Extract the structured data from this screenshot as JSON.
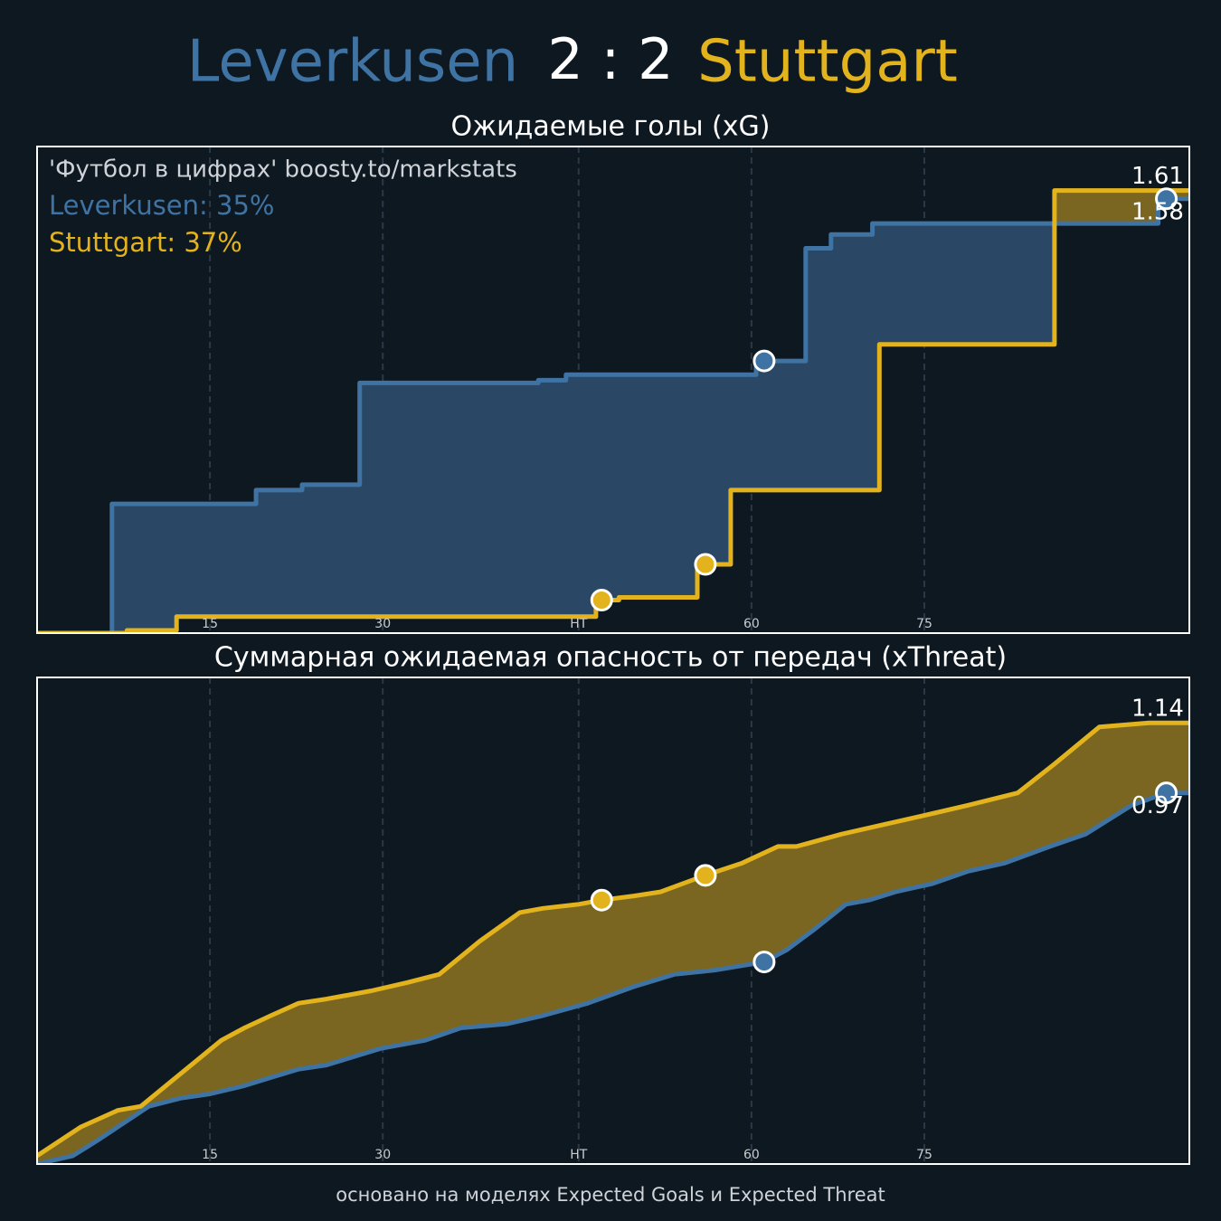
{
  "header": {
    "home": "Leverkusen",
    "score": "2 : 2",
    "away": "Stuttgart"
  },
  "footer": "основано на моделях Expected Goals и Expected Threat",
  "chart_data": [
    {
      "type": "step",
      "title": "Ожидаемые голы (xG)",
      "annotations": [
        "'Футбол в цифрах' boosty.to/markstats",
        "Leverkusen: 35%",
        "Stuttgart: 37%"
      ],
      "xlim": [
        0,
        100
      ],
      "ylim": [
        0,
        1.77
      ],
      "xticks": [
        15,
        30,
        {
          "value": 47,
          "label": "HT"
        },
        {
          "value": 62,
          "label": "60"
        },
        {
          "value": 77,
          "label": "75"
        }
      ],
      "grid": true,
      "series": [
        {
          "name": "Leverkusen",
          "color": "#3f73a3",
          "fill": "#2a4865",
          "x": [
            0,
            6.5,
            19,
            23,
            28,
            43.5,
            45.9,
            62.4,
            66.7,
            68.9,
            72.5,
            97.3,
            100
          ],
          "values": [
            0,
            0.47,
            0.52,
            0.54,
            0.91,
            0.92,
            0.94,
            0.99,
            1.4,
            1.45,
            1.49,
            1.58,
            1.58
          ],
          "goals": [
            63.1,
            98.0
          ]
        },
        {
          "name": "Stuttgart",
          "color": "#e2b31d",
          "fill": "#7a6620",
          "x": [
            0,
            7.8,
            12.1,
            48.5,
            50.5,
            57.3,
            60.2,
            73.1,
            88.3,
            100
          ],
          "values": [
            0,
            0.01,
            0.06,
            0.12,
            0.13,
            0.25,
            0.52,
            1.05,
            1.61,
            1.61
          ],
          "goals": [
            49.0,
            58.0
          ]
        }
      ]
    },
    {
      "type": "line",
      "title": "Суммарная ожидаемая опасность от передач (xThreat)",
      "xlim": [
        0,
        100
      ],
      "ylim": [
        0.07,
        1.25
      ],
      "xticks": [
        15,
        30,
        {
          "value": 47,
          "label": "HT"
        },
        {
          "value": 62,
          "label": "60"
        },
        {
          "value": 77,
          "label": "75"
        }
      ],
      "grid": true,
      "series": [
        {
          "name": "Leverkusen",
          "color": "#3f73a3",
          "fill": "#2a4865",
          "x": [
            0,
            3.1,
            5.4,
            9.7,
            12.5,
            15.0,
            18.0,
            20.3,
            22.7,
            25.1,
            29.8,
            33.7,
            36.8,
            40.8,
            43.9,
            47.8,
            51.8,
            55.3,
            58.8,
            63.1,
            65.1,
            67.5,
            70.2,
            72.2,
            74.5,
            77.7,
            80.8,
            84.0,
            87.9,
            91.0,
            95.0,
            98.0,
            100
          ],
          "values": [
            0.07,
            0.09,
            0.13,
            0.21,
            0.23,
            0.24,
            0.26,
            0.28,
            0.3,
            0.31,
            0.35,
            0.37,
            0.4,
            0.41,
            0.43,
            0.46,
            0.5,
            0.53,
            0.54,
            0.56,
            0.59,
            0.64,
            0.7,
            0.71,
            0.73,
            0.75,
            0.78,
            0.8,
            0.84,
            0.87,
            0.94,
            0.97,
            0.97
          ],
          "goals": [
            63.1,
            98.0
          ]
        },
        {
          "name": "Stuttgart",
          "color": "#e2b31d",
          "fill": "#7a6620",
          "x": [
            0,
            3.8,
            7.0,
            9.0,
            16.0,
            18.0,
            20.3,
            22.7,
            25.1,
            29.0,
            32.1,
            34.9,
            38.4,
            41.9,
            43.9,
            47.0,
            49.0,
            51.8,
            54.1,
            58.0,
            61.2,
            64.3,
            65.9,
            69.8,
            73.0,
            77.7,
            80.8,
            85.1,
            88.3,
            92.2,
            96.5,
            100
          ],
          "values": [
            0.09,
            0.16,
            0.2,
            0.21,
            0.37,
            0.4,
            0.43,
            0.46,
            0.47,
            0.49,
            0.51,
            0.53,
            0.61,
            0.68,
            0.69,
            0.7,
            0.71,
            0.72,
            0.73,
            0.77,
            0.8,
            0.84,
            0.84,
            0.87,
            0.89,
            0.92,
            0.94,
            0.97,
            1.04,
            1.13,
            1.14,
            1.14
          ],
          "goals": [
            49.0,
            58.0
          ]
        }
      ]
    }
  ]
}
